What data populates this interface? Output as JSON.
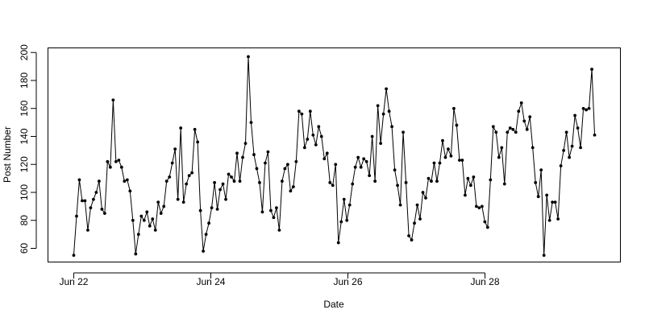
{
  "chart_data": {
    "type": "line",
    "xlabel": "Date",
    "ylabel": "Post Number",
    "x_tick_labels": [
      "Jun 22",
      "Jun 24",
      "Jun 26",
      "Jun 28"
    ],
    "x_tick_days": [
      0,
      2,
      4,
      6
    ],
    "x_range_days": [
      -0.37,
      7.97
    ],
    "y_ticks": [
      60,
      80,
      100,
      120,
      140,
      160,
      180,
      200
    ],
    "ylim": [
      50.5,
      203
    ],
    "grid": false,
    "legend": false,
    "line_color": "#000000",
    "marker": "filled-circle",
    "series": [
      {
        "values": [
          55,
          83,
          109,
          94,
          94,
          73,
          89,
          95,
          100,
          108,
          88,
          85,
          122,
          118,
          166,
          122,
          123,
          118,
          108,
          109,
          101,
          80,
          56,
          70,
          83,
          80,
          86,
          76,
          81,
          73,
          93,
          85,
          90,
          108,
          111,
          121,
          131,
          95,
          146,
          93,
          106,
          112,
          114,
          145,
          136,
          87,
          58,
          70,
          78,
          89,
          107,
          88,
          102,
          106,
          95,
          113,
          111,
          108,
          128,
          108,
          125,
          135,
          197,
          150,
          127,
          117,
          107,
          86,
          121,
          129,
          87,
          82,
          89,
          73,
          108,
          117,
          120,
          101,
          104,
          122,
          158,
          156,
          132,
          138,
          158,
          141,
          134,
          147,
          140,
          124,
          128,
          107,
          105,
          120,
          64,
          79,
          95,
          80,
          91,
          106,
          118,
          125,
          118,
          124,
          122,
          112,
          140,
          108,
          162,
          135,
          156,
          174,
          158,
          147,
          116,
          105,
          91,
          143,
          107,
          69,
          66,
          78,
          91,
          81,
          100,
          96,
          110,
          108,
          121,
          108,
          121,
          137,
          125,
          131,
          126,
          160,
          148,
          123,
          123,
          98,
          110,
          105,
          111,
          90,
          89,
          90,
          79,
          75,
          109,
          147,
          143,
          125,
          132,
          106,
          143,
          146,
          145,
          143,
          158,
          164,
          151,
          145,
          154,
          132,
          107,
          97,
          116,
          55,
          98,
          80,
          93,
          93,
          81,
          119,
          130,
          143,
          125,
          133,
          155,
          146,
          132,
          160,
          159,
          160,
          188,
          141
        ]
      }
    ]
  }
}
